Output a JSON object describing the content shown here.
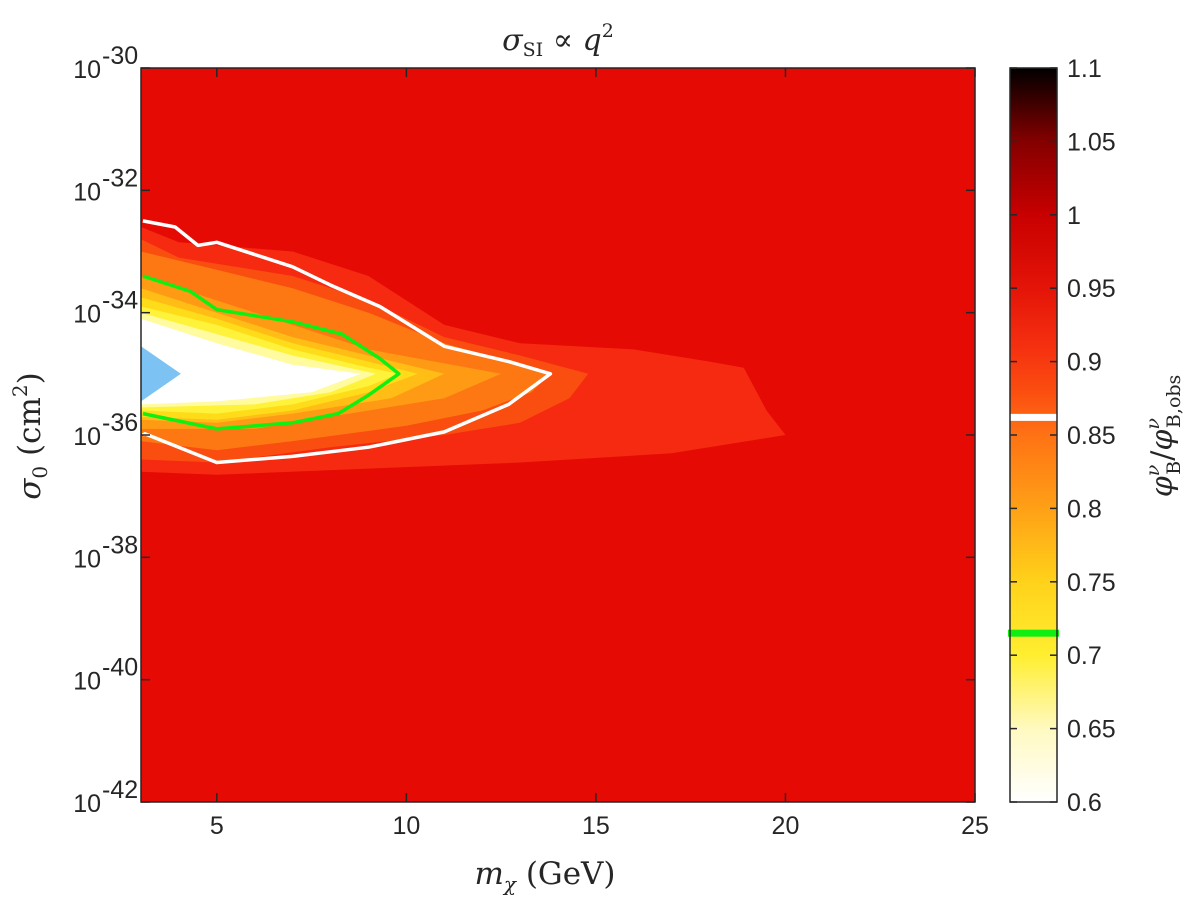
{
  "chart_data": {
    "type": "heatmap",
    "title": "σSI ∝ q²",
    "title_parts": {
      "sigma": "σ",
      "sub": "SI",
      "prop": " ∝ ",
      "q": "q",
      "exp": "2"
    },
    "xlabel": "mχ (GeV)",
    "xlabel_parts": {
      "m": "m",
      "sub": "χ",
      "rest": " (GeV)"
    },
    "ylabel": "σ0 (cm²)",
    "ylabel_parts": {
      "sigma": "σ",
      "sub": "0",
      "rest1": " (cm",
      "exp": "2",
      "rest2": ")"
    },
    "colorbar_label": "φνB/φνB,obs",
    "colorbar_label_parts": {
      "phi1": "φ",
      "nu1": "ν",
      "b1": "B",
      "slash": "/",
      "phi2": "φ",
      "nu2": "ν",
      "b2": "B,obs"
    },
    "xlim": [
      3,
      25
    ],
    "xticks": [
      5,
      10,
      15,
      20,
      25
    ],
    "y_scale": "log",
    "ylim_log10": [
      -42,
      -30
    ],
    "yticks": [
      {
        "base": "10",
        "exp": "-30",
        "log": -30
      },
      {
        "base": "10",
        "exp": "-32",
        "log": -32
      },
      {
        "base": "10",
        "exp": "-34",
        "log": -34
      },
      {
        "base": "10",
        "exp": "-36",
        "log": -36
      },
      {
        "base": "10",
        "exp": "-38",
        "log": -38
      },
      {
        "base": "10",
        "exp": "-40",
        "log": -40
      },
      {
        "base": "10",
        "exp": "-42",
        "log": -42
      }
    ],
    "colorbar_range": [
      0.6,
      1.1
    ],
    "colorbar_ticks": [
      {
        "label": "1.1",
        "value": 1.1
      },
      {
        "label": "1.05",
        "value": 1.05
      },
      {
        "label": "1",
        "value": 1.0
      },
      {
        "label": "0.95",
        "value": 0.95
      },
      {
        "label": "0.9",
        "value": 0.9
      },
      {
        "label": "0.85",
        "value": 0.85
      },
      {
        "label": "0.8",
        "value": 0.8
      },
      {
        "label": "0.75",
        "value": 0.75
      },
      {
        "label": "0.7",
        "value": 0.7
      },
      {
        "label": "0.65",
        "value": 0.65
      },
      {
        "label": "0.6",
        "value": 0.6
      }
    ],
    "background_value": 0.94,
    "contour_levels": [
      {
        "value": 0.915,
        "color": "#f52a10",
        "boundary": [
          [
            3,
            -32.6
          ],
          [
            4,
            -32.85
          ],
          [
            5,
            -32.9
          ],
          [
            7,
            -33.0
          ],
          [
            9,
            -33.4
          ],
          [
            11,
            -34.2
          ],
          [
            13,
            -34.5
          ],
          [
            16,
            -34.6
          ],
          [
            18,
            -34.8
          ],
          [
            18.9,
            -34.9
          ],
          [
            19.5,
            -35.6
          ],
          [
            20,
            -36.0
          ],
          [
            17,
            -36.3
          ],
          [
            13,
            -36.45
          ],
          [
            9,
            -36.55
          ],
          [
            5,
            -36.65
          ],
          [
            3,
            -36.6
          ]
        ]
      },
      {
        "value": 0.89,
        "color": "#fa4d10",
        "boundary": [
          [
            3,
            -32.8
          ],
          [
            4,
            -33.1
          ],
          [
            5,
            -33.2
          ],
          [
            7,
            -33.4
          ],
          [
            9,
            -33.8
          ],
          [
            11,
            -34.4
          ],
          [
            13,
            -34.7
          ],
          [
            14.8,
            -35.0
          ],
          [
            14.3,
            -35.4
          ],
          [
            13,
            -35.8
          ],
          [
            11,
            -36.0
          ],
          [
            8,
            -36.2
          ],
          [
            5,
            -36.45
          ],
          [
            3,
            -36.4
          ]
        ]
      },
      {
        "value": 0.86,
        "color": "#fd7812",
        "boundary": [
          [
            3,
            -33.0
          ],
          [
            5,
            -33.3
          ],
          [
            7,
            -33.6
          ],
          [
            9,
            -34.0
          ],
          [
            11,
            -34.5
          ],
          [
            13.8,
            -35.0
          ],
          [
            13.3,
            -35.3
          ],
          [
            12,
            -35.6
          ],
          [
            10,
            -35.85
          ],
          [
            7,
            -36.1
          ],
          [
            5,
            -36.25
          ],
          [
            3,
            -36.1
          ]
        ]
      },
      {
        "value": 0.83,
        "color": "#ff9a14",
        "boundary": [
          [
            3,
            -33.4
          ],
          [
            5,
            -33.8
          ],
          [
            7,
            -34.2
          ],
          [
            9,
            -34.6
          ],
          [
            12.5,
            -35.0
          ],
          [
            11,
            -35.4
          ],
          [
            9,
            -35.6
          ],
          [
            6,
            -35.9
          ],
          [
            3,
            -35.9
          ]
        ]
      },
      {
        "value": 0.79,
        "color": "#ffbd16",
        "boundary": [
          [
            3,
            -33.6
          ],
          [
            5,
            -34.0
          ],
          [
            7,
            -34.4
          ],
          [
            9,
            -34.7
          ],
          [
            11,
            -35.0
          ],
          [
            9.6,
            -35.4
          ],
          [
            7,
            -35.65
          ],
          [
            5,
            -35.8
          ],
          [
            3,
            -35.75
          ]
        ]
      },
      {
        "value": 0.75,
        "color": "#ffdc1a",
        "boundary": [
          [
            3,
            -33.75
          ],
          [
            5,
            -34.1
          ],
          [
            7,
            -34.5
          ],
          [
            9,
            -34.8
          ],
          [
            10.3,
            -35.0
          ],
          [
            9,
            -35.3
          ],
          [
            7,
            -35.6
          ],
          [
            5,
            -35.75
          ],
          [
            3,
            -35.7
          ]
        ]
      },
      {
        "value": 0.71,
        "color": "#fff23a",
        "boundary": [
          [
            3,
            -33.9
          ],
          [
            5,
            -34.2
          ],
          [
            7,
            -34.6
          ],
          [
            9,
            -34.9
          ],
          [
            9.8,
            -35.0
          ],
          [
            9,
            -35.2
          ],
          [
            7,
            -35.5
          ],
          [
            5,
            -35.65
          ],
          [
            3,
            -35.6
          ]
        ]
      },
      {
        "value": 0.67,
        "color": "#fffb9e",
        "boundary": [
          [
            3,
            -34.0
          ],
          [
            5,
            -34.35
          ],
          [
            7,
            -34.7
          ],
          [
            9.2,
            -35.0
          ],
          [
            8,
            -35.3
          ],
          [
            6,
            -35.5
          ],
          [
            3,
            -35.55
          ]
        ]
      },
      {
        "value": 0.62,
        "color": "#ffffff",
        "boundary": [
          [
            3,
            -34.1
          ],
          [
            5,
            -34.5
          ],
          [
            7,
            -34.85
          ],
          [
            8.8,
            -35.0
          ],
          [
            7.5,
            -35.3
          ],
          [
            5,
            -35.45
          ],
          [
            3,
            -35.5
          ]
        ]
      }
    ],
    "contour_lines": [
      {
        "value": 0.86,
        "color": "#ffffff",
        "points": [
          [
            3.05,
            -36.0
          ],
          [
            3.1,
            -35.98
          ],
          [
            5,
            -36.45
          ],
          [
            7,
            -36.35
          ],
          [
            9,
            -36.2
          ],
          [
            11,
            -35.95
          ],
          [
            12.7,
            -35.5
          ],
          [
            13.8,
            -35.0
          ],
          [
            12.7,
            -34.8
          ],
          [
            11,
            -34.55
          ],
          [
            9.3,
            -33.9
          ],
          [
            8,
            -33.55
          ],
          [
            7,
            -33.25
          ],
          [
            5,
            -32.85
          ],
          [
            4.5,
            -32.9
          ],
          [
            3.9,
            -32.6
          ],
          [
            3.05,
            -32.5
          ]
        ]
      },
      {
        "value": 0.71,
        "color": "#11ee11",
        "points": [
          [
            3.05,
            -35.65
          ],
          [
            5,
            -35.9
          ],
          [
            7,
            -35.8
          ],
          [
            8.2,
            -35.65
          ],
          [
            9,
            -35.35
          ],
          [
            9.8,
            -35.0
          ],
          [
            9.3,
            -34.75
          ],
          [
            8.3,
            -34.35
          ],
          [
            7,
            -34.15
          ],
          [
            5,
            -33.95
          ],
          [
            4.3,
            -33.65
          ],
          [
            3.05,
            -33.4
          ]
        ]
      }
    ],
    "excluded_region": {
      "color": "#7cc2f2",
      "points": [
        [
          3,
          -34.55
        ],
        [
          4.05,
          -35.0
        ],
        [
          3,
          -35.45
        ]
      ]
    },
    "colorbar_markers": [
      {
        "value": 0.862,
        "color": "#ffffff"
      },
      {
        "value": 0.715,
        "color": "#11ee11"
      }
    ],
    "colorbar_gradient": [
      [
        0.6,
        "#ffffff"
      ],
      [
        0.65,
        "#fff9c0"
      ],
      [
        0.7,
        "#ffee30"
      ],
      [
        0.75,
        "#ffd21a"
      ],
      [
        0.8,
        "#ffa016"
      ],
      [
        0.85,
        "#ff7214"
      ],
      [
        0.88,
        "#fb4d10"
      ],
      [
        0.91,
        "#f53010"
      ],
      [
        0.95,
        "#e41408"
      ],
      [
        1.0,
        "#c80000"
      ],
      [
        1.05,
        "#840000"
      ],
      [
        1.1,
        "#000000"
      ]
    ]
  }
}
